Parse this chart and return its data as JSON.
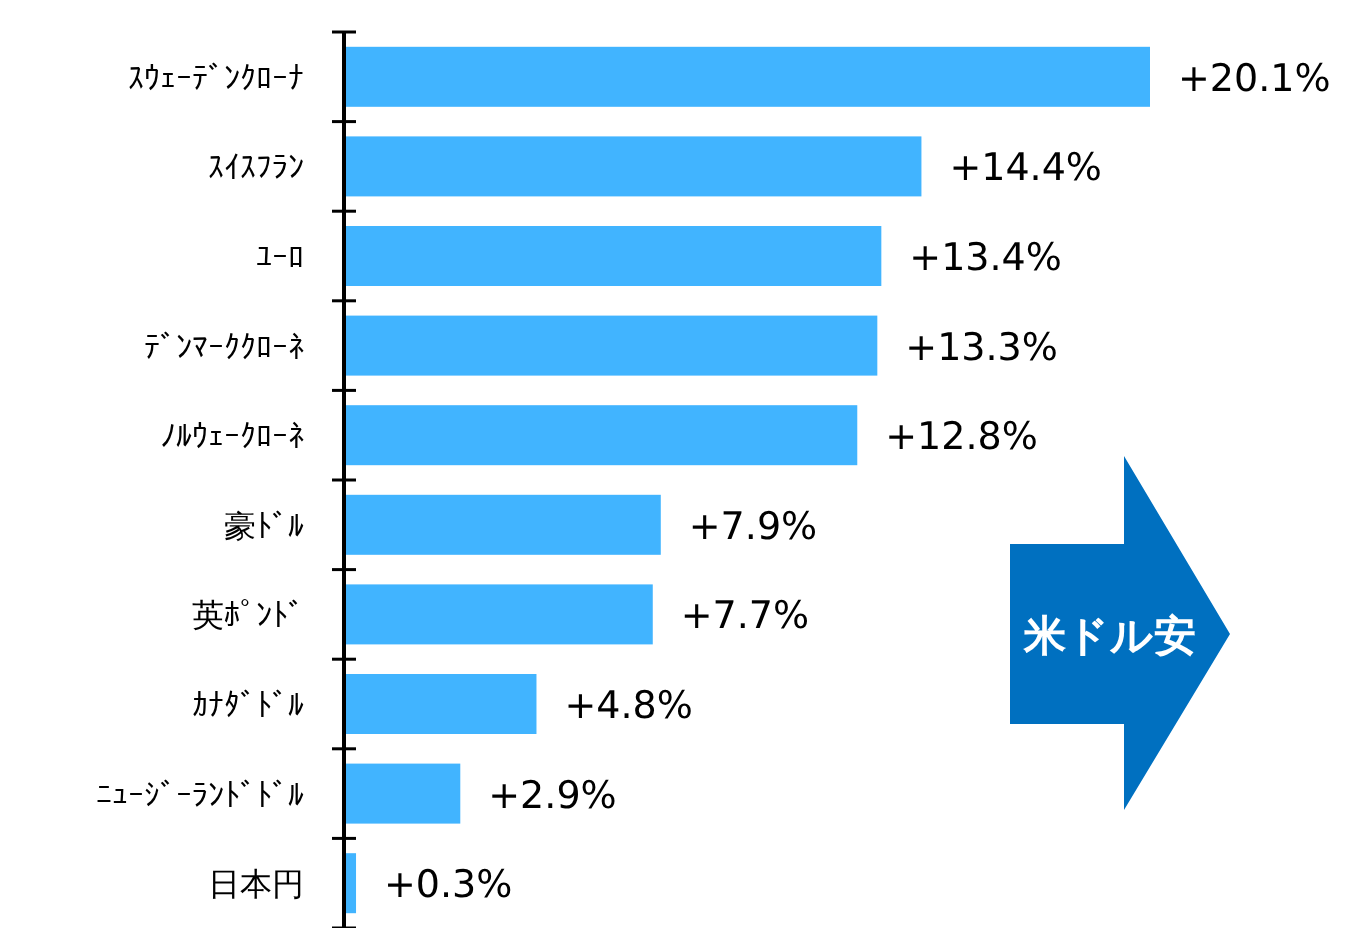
{
  "chart_data": {
    "type": "bar",
    "orientation": "horizontal",
    "categories": [
      "ｽｳｪｰﾃﾞﾝｸﾛｰﾅ",
      "ｽｲｽﾌﾗﾝ",
      "ﾕｰﾛ",
      "ﾃﾞﾝﾏｰｸｸﾛｰﾈ",
      "ﾉﾙｳｪｰｸﾛｰﾈ",
      "豪ﾄﾞﾙ",
      "英ﾎﾟﾝﾄﾞ",
      "ｶﾅﾀﾞﾄﾞﾙ",
      "ﾆｭｰｼﾞｰﾗﾝﾄﾞﾄﾞﾙ",
      "日本円"
    ],
    "values": [
      20.1,
      14.4,
      13.4,
      13.3,
      12.8,
      7.9,
      7.7,
      4.8,
      2.9,
      0.3
    ],
    "value_labels": [
      "+20.1%",
      "+14.4%",
      "+13.4%",
      "+13.3%",
      "+12.8%",
      "+7.9%",
      "+7.7%",
      "+4.8%",
      "+2.9%",
      "+0.3%"
    ],
    "color": "#41b4ff",
    "annotations": [
      "米ドル安"
    ]
  }
}
